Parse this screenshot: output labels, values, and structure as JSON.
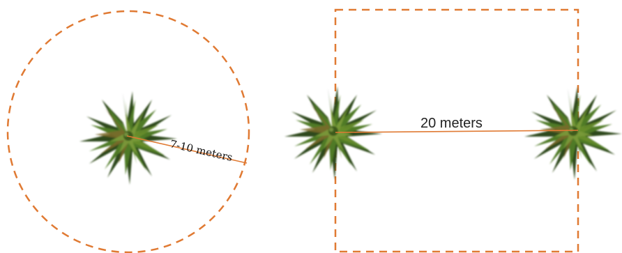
{
  "diagram": {
    "radius_label": "7-10 meters",
    "distance_label": "20 meters",
    "colors": {
      "boundary": "#e07a33",
      "measure_line": "#e07a33",
      "foliage_dark": "#2f4a1a",
      "foliage_mid": "#4f7a26",
      "foliage_light": "#7a9a3a",
      "foliage_brown": "#7a6a2a"
    },
    "icons": {
      "tree": "palm-tree-top-view-icon",
      "circle": "dashed-circle-boundary",
      "square": "dashed-square-boundary"
    }
  }
}
